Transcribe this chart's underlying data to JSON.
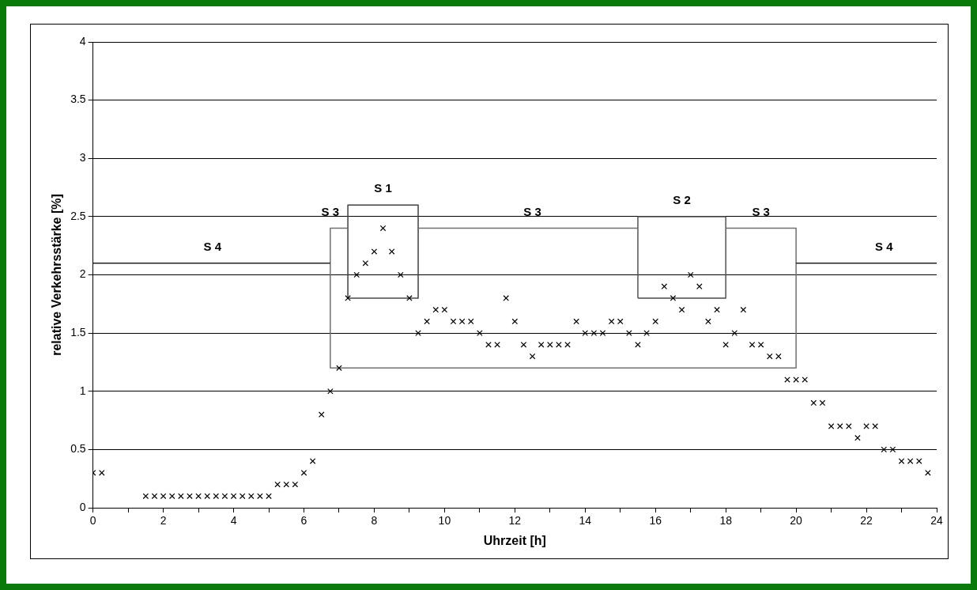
{
  "chart_data": {
    "type": "scatter",
    "xlabel": "Uhrzeit [h]",
    "ylabel": "relative Verkehrsstärke [%]",
    "xlim": [
      0,
      24
    ],
    "xticks": [
      0,
      {
        "value": 1,
        "label": null
      },
      2,
      {
        "value": 3,
        "label": null
      },
      4,
      {
        "value": 5,
        "label": null
      },
      6,
      {
        "value": 7,
        "label": null
      },
      8,
      {
        "value": 9,
        "label": null
      },
      10,
      {
        "value": 11,
        "label": null
      },
      12,
      {
        "value": 13,
        "label": null
      },
      14,
      {
        "value": 15,
        "label": null
      },
      16,
      {
        "value": 17,
        "label": null
      },
      18,
      {
        "value": 19,
        "label": null
      },
      20,
      {
        "value": 21,
        "label": null
      },
      22,
      {
        "value": 23,
        "label": null
      },
      24
    ],
    "ylim": [
      0,
      4
    ],
    "yticks": [
      0,
      0.5,
      1,
      1.5,
      2,
      2.5,
      3,
      3.5,
      4
    ],
    "grid": "y",
    "legend": false,
    "x": [
      0,
      0.25,
      1.5,
      1.75,
      2,
      2.25,
      2.5,
      2.75,
      3,
      3.25,
      3.5,
      3.75,
      4,
      4.25,
      4.5,
      4.75,
      5,
      5.25,
      5.5,
      5.75,
      6,
      6.25,
      6.5,
      6.75,
      7,
      7.25,
      7.5,
      7.75,
      8,
      8.25,
      8.5,
      8.75,
      9,
      9.25,
      9.5,
      9.75,
      10,
      10.25,
      10.5,
      10.75,
      11,
      11.25,
      11.5,
      11.75,
      12,
      12.25,
      12.5,
      12.75,
      13,
      13.25,
      13.5,
      13.75,
      14,
      14.25,
      14.5,
      14.75,
      15,
      15.25,
      15.5,
      15.75,
      16,
      16.25,
      16.5,
      16.75,
      17,
      17.25,
      17.5,
      17.75,
      18,
      18.25,
      18.5,
      18.75,
      19,
      19.25,
      19.5,
      19.75,
      20,
      20.25,
      20.5,
      20.75,
      21,
      21.25,
      21.5,
      21.75,
      22,
      22.25,
      22.5,
      22.75,
      23,
      23.25,
      23.5,
      23.75
    ],
    "series": [
      {
        "color": "#000000",
        "marker": "cross",
        "values": [
          0.3,
          0.3,
          0.1,
          0.1,
          0.1,
          0.1,
          0.1,
          0.1,
          0.1,
          0.1,
          0.1,
          0.1,
          0.1,
          0.1,
          0.1,
          0.1,
          0.1,
          0.2,
          0.2,
          0.2,
          0.3,
          0.4,
          0.8,
          1.0,
          1.2,
          1.8,
          2.0,
          2.1,
          2.2,
          2.4,
          2.2,
          2.0,
          1.8,
          1.5,
          1.6,
          1.7,
          1.7,
          1.6,
          1.6,
          1.6,
          1.5,
          1.4,
          1.4,
          1.8,
          1.6,
          1.4,
          1.3,
          1.4,
          1.4,
          1.4,
          1.4,
          1.6,
          1.5,
          1.5,
          1.5,
          1.6,
          1.6,
          1.5,
          1.4,
          1.5,
          1.6,
          1.9,
          1.8,
          1.7,
          2.0,
          1.9,
          1.6,
          1.7,
          1.4,
          1.5,
          1.7,
          1.4,
          1.4,
          1.3,
          1.3,
          1.1,
          1.1,
          1.1,
          0.9,
          0.9,
          0.7,
          0.7,
          0.7,
          0.6,
          0.7,
          0.7,
          0.5,
          0.5,
          0.4,
          0.4,
          0.4,
          0.3
        ]
      },
      {
        "type": "line",
        "marker": "none",
        "color": "#202020",
        "x": [
          0,
          6.75,
          13,
          20,
          24
        ],
        "values": [
          2.1,
          2.1,
          null,
          2.1,
          2.1
        ]
      },
      {
        "type": "line",
        "marker": "none",
        "color": "#707070",
        "x": [
          7.25,
          6.75,
          6.75,
          20,
          20,
          18,
          17,
          15.5,
          9.25
        ],
        "values": [
          2.4,
          2.4,
          1.2,
          1.2,
          2.4,
          2.4,
          null,
          2.4,
          2.4
        ]
      },
      {
        "type": "line",
        "marker": "none",
        "color": "#404040",
        "x": [
          7.25,
          7.25,
          9.25,
          9.25
        ],
        "values": [
          1.8,
          2.6,
          2.6,
          1.8
        ]
      },
      {
        "type": "line",
        "marker": "none",
        "color": "#555555",
        "x": [
          15.5,
          15.5,
          18,
          18
        ],
        "values": [
          1.8,
          2.5,
          2.5,
          1.8
        ]
      },
      {
        "type": "line",
        "marker": "none",
        "color": "#4a4a4a",
        "x": [
          7.25,
          9.25,
          12,
          15.5,
          18
        ],
        "values": [
          1.8,
          1.8,
          null,
          1.8,
          1.8
        ]
      }
    ],
    "annotations": [
      {
        "text": "S 4",
        "x": 3.4,
        "y": 2.1
      },
      {
        "text": "S 3",
        "x": 6.75,
        "y": 2.4
      },
      {
        "text": "S 1",
        "x": 8.25,
        "y": 2.6
      },
      {
        "text": "S 3",
        "x": 12.5,
        "y": 2.4
      },
      {
        "text": "S 2",
        "x": 16.75,
        "y": 2.5
      },
      {
        "text": "S 3",
        "x": 19,
        "y": 2.4
      },
      {
        "text": "S 4",
        "x": 22.5,
        "y": 2.1
      }
    ]
  }
}
